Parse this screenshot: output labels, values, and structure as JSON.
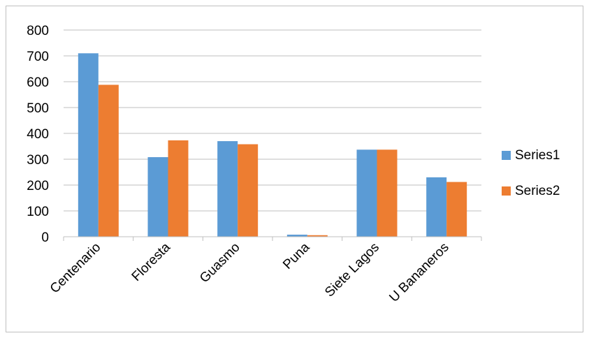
{
  "chart_data": {
    "type": "bar",
    "categories": [
      "Centenario",
      "Floresta",
      "Guasmo",
      "Puna",
      "Siete Lagos",
      "U Bananeros"
    ],
    "series": [
      {
        "name": "Series1",
        "values": [
          710,
          308,
          370,
          8,
          337,
          230
        ],
        "color": "#5b9bd5"
      },
      {
        "name": "Series2",
        "values": [
          588,
          373,
          358,
          6,
          337,
          212
        ],
        "color": "#ed7d31"
      }
    ],
    "ylim": [
      0,
      800
    ],
    "yticks": [
      "0",
      "100",
      "200",
      "300",
      "400",
      "500",
      "600",
      "700",
      "800"
    ],
    "grid": true,
    "legend": "right",
    "gridline_color": "#bfbfbf"
  }
}
